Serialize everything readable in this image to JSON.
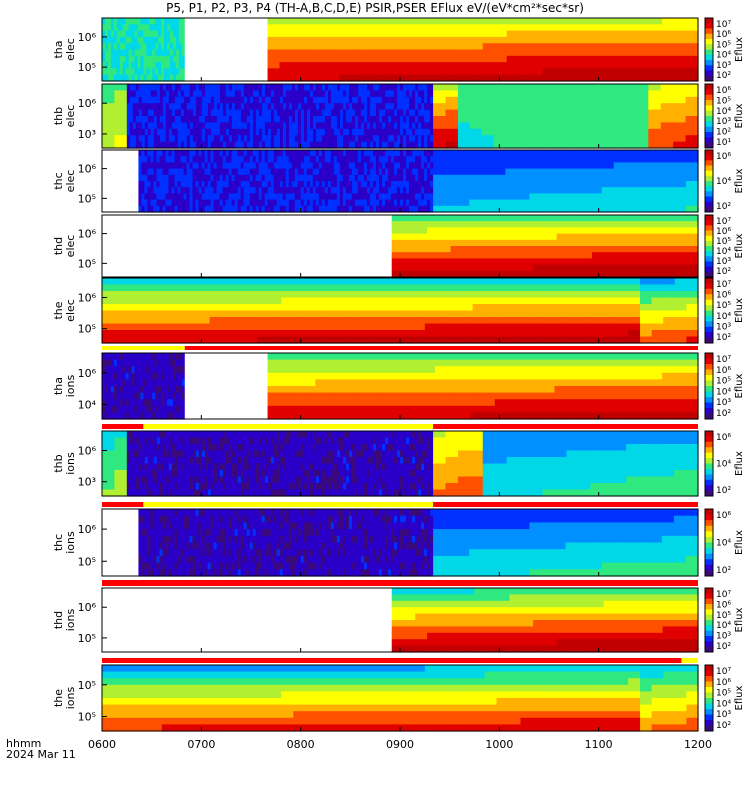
{
  "title": "P5, P1, P2, P3, P4 (TH-A,B,C,D,E) PSIR,PSER EFlux eV/(eV*cm²*sec*sr)",
  "time_label": "hhmm",
  "date_label": "2024 Mar 11",
  "colors": {
    "colormap": [
      "#3b0a7a",
      "#2a00c8",
      "#0030ff",
      "#0090ff",
      "#00d8e8",
      "#30e880",
      "#b0f030",
      "#ffff00",
      "#ffb000",
      "#ff5000",
      "#e00000",
      "#c00000"
    ],
    "flag_red": "#ff0000",
    "flag_yellow": "#ffff00",
    "gap": "#ffffff"
  },
  "chart_data": {
    "type": "heatmap",
    "x_ticks": [
      "0600",
      "0700",
      "0800",
      "0900",
      "1000",
      "1100",
      "1200"
    ],
    "xlim": [
      "06:00",
      "12:00"
    ],
    "colorbar_label": "Eflux",
    "panels": [
      {
        "ylabel": [
          "tha",
          "elec"
        ],
        "y_ticks": [
          "10⁶",
          "10⁵"
        ],
        "cbar_ticks": [
          "10⁷",
          "10⁶",
          "10⁵",
          "10⁴",
          "10³",
          "10²"
        ],
        "segments": [
          {
            "start": "06:00",
            "end": "06:50",
            "pattern": "noise",
            "level": 0.35
          },
          {
            "start": "06:50",
            "end": "07:40",
            "pattern": "gap"
          },
          {
            "start": "07:40",
            "end": "12:00",
            "pattern": "smooth",
            "top": 0.55,
            "bottom": 0.92
          }
        ]
      },
      {
        "ylabel": [
          "thb",
          "elec"
        ],
        "y_ticks": [
          "10⁶",
          "10³"
        ],
        "cbar_ticks": [
          "10⁶",
          "10⁵",
          "10⁴",
          "10³",
          "10²",
          "10¹"
        ],
        "segments": [
          {
            "start": "06:00",
            "end": "06:15",
            "pattern": "smooth",
            "top": 0.5,
            "bottom": 0.55
          },
          {
            "start": "06:15",
            "end": "09:20",
            "pattern": "noise",
            "level": 0.1
          },
          {
            "start": "09:20",
            "end": "09:35",
            "pattern": "smooth",
            "top": 0.55,
            "bottom": 0.9
          },
          {
            "start": "09:35",
            "end": "11:30",
            "pattern": "smooth",
            "top": 0.5,
            "bottom": 0.4
          },
          {
            "start": "11:30",
            "end": "12:00",
            "pattern": "smooth",
            "top": 0.6,
            "bottom": 0.8
          }
        ]
      },
      {
        "ylabel": [
          "thc",
          "elec"
        ],
        "y_ticks": [
          "10⁶",
          "10⁵"
        ],
        "cbar_ticks": [
          "10⁶",
          "10⁴",
          "10²"
        ],
        "segments": [
          {
            "start": "06:00",
            "end": "06:22",
            "pattern": "gap"
          },
          {
            "start": "06:22",
            "end": "09:20",
            "pattern": "noise",
            "level": 0.1
          },
          {
            "start": "09:20",
            "end": "12:00",
            "pattern": "smooth",
            "top": 0.2,
            "bottom": 0.35
          }
        ]
      },
      {
        "ylabel": [
          "thd",
          "elec"
        ],
        "y_ticks": [
          "10⁶",
          "10⁵"
        ],
        "cbar_ticks": [
          "10⁷",
          "10⁶",
          "10⁵",
          "10⁴",
          "10³",
          "10²"
        ],
        "segments": [
          {
            "start": "06:00",
            "end": "08:55",
            "pattern": "gap"
          },
          {
            "start": "08:55",
            "end": "12:00",
            "pattern": "smooth",
            "top": 0.45,
            "bottom": 0.95
          }
        ]
      },
      {
        "ylabel": [
          "the",
          "elec"
        ],
        "y_ticks": [
          "10⁶",
          "10⁵"
        ],
        "cbar_ticks": [
          "10⁷",
          "10⁶",
          "10⁵",
          "10⁴",
          "10³",
          "10²"
        ],
        "segments": [
          {
            "start": "06:00",
            "end": "11:25",
            "pattern": "smooth",
            "top": 0.35,
            "bottom": 0.92
          },
          {
            "start": "11:25",
            "end": "12:00",
            "pattern": "smooth",
            "top": 0.3,
            "bottom": 0.8
          }
        ]
      },
      {
        "ylabel": [
          "tha",
          "ions"
        ],
        "y_ticks": [
          "10⁶",
          "10⁴"
        ],
        "cbar_ticks": [
          "10⁷",
          "10⁶",
          "10⁵",
          "10⁴",
          "10³",
          "10²"
        ],
        "segments": [
          {
            "start": "06:00",
            "end": "06:50",
            "pattern": "noise",
            "level": 0.05
          },
          {
            "start": "06:50",
            "end": "07:40",
            "pattern": "gap"
          },
          {
            "start": "07:40",
            "end": "12:00",
            "pattern": "smooth",
            "top": 0.45,
            "bottom": 0.9
          }
        ]
      },
      {
        "ylabel": [
          "thb",
          "ions"
        ],
        "y_ticks": [
          "10⁶",
          "10³"
        ],
        "cbar_ticks": [
          "10⁶",
          "10⁴",
          "10²"
        ],
        "segments": [
          {
            "start": "06:00",
            "end": "06:15",
            "pattern": "smooth",
            "top": 0.4,
            "bottom": 0.5
          },
          {
            "start": "06:15",
            "end": "09:20",
            "pattern": "noise",
            "level": 0.05
          },
          {
            "start": "09:20",
            "end": "09:50",
            "pattern": "smooth",
            "top": 0.6,
            "bottom": 0.75
          },
          {
            "start": "09:50",
            "end": "12:00",
            "pattern": "smooth",
            "top": 0.3,
            "bottom": 0.4
          }
        ]
      },
      {
        "ylabel": [
          "thc",
          "ions"
        ],
        "y_ticks": [
          "10⁶",
          "10⁵"
        ],
        "cbar_ticks": [
          "10⁶",
          "10⁴",
          "10²"
        ],
        "segments": [
          {
            "start": "06:00",
            "end": "06:22",
            "pattern": "gap"
          },
          {
            "start": "06:22",
            "end": "09:20",
            "pattern": "noise",
            "level": 0.05
          },
          {
            "start": "09:20",
            "end": "12:00",
            "pattern": "smooth",
            "top": 0.2,
            "bottom": 0.4
          }
        ]
      },
      {
        "ylabel": [
          "thd",
          "ions"
        ],
        "y_ticks": [
          "10⁶",
          "10⁵"
        ],
        "cbar_ticks": [
          "10⁷",
          "10⁶",
          "10⁵",
          "10⁴",
          "10³",
          "10²"
        ],
        "segments": [
          {
            "start": "06:00",
            "end": "08:55",
            "pattern": "gap"
          },
          {
            "start": "08:55",
            "end": "12:00",
            "pattern": "smooth",
            "top": 0.4,
            "bottom": 0.95
          }
        ]
      },
      {
        "ylabel": [
          "the",
          "ions"
        ],
        "y_ticks": [
          "10⁵",
          "10⁵"
        ],
        "cbar_ticks": [
          "10⁷",
          "10⁶",
          "10⁵",
          "10⁴",
          "10³",
          "10²"
        ],
        "segments": [
          {
            "start": "06:00",
            "end": "11:25",
            "pattern": "smooth",
            "top": 0.3,
            "bottom": 0.85
          },
          {
            "start": "11:25",
            "end": "12:00",
            "pattern": "smooth",
            "top": 0.35,
            "bottom": 0.75
          }
        ]
      }
    ],
    "flag_bars": [
      {
        "after_panel": 4,
        "segments": [
          {
            "start": "06:00",
            "end": "06:50",
            "color": "yellow"
          },
          {
            "start": "06:50",
            "end": "12:00",
            "color": "red"
          }
        ]
      },
      {
        "after_panel": 5,
        "segments": [
          {
            "start": "06:00",
            "end": "06:25",
            "color": "red"
          },
          {
            "start": "06:25",
            "end": "09:20",
            "color": "yellow"
          },
          {
            "start": "09:20",
            "end": "12:00",
            "color": "red"
          }
        ]
      },
      {
        "after_panel": 6,
        "segments": [
          {
            "start": "06:00",
            "end": "06:25",
            "color": "red"
          },
          {
            "start": "06:25",
            "end": "09:20",
            "color": "yellow"
          },
          {
            "start": "09:20",
            "end": "12:00",
            "color": "red"
          }
        ]
      },
      {
        "after_panel": 7,
        "segments": [
          {
            "start": "06:00",
            "end": "12:00",
            "color": "red"
          }
        ]
      },
      {
        "after_panel": 8,
        "segments": [
          {
            "start": "06:00",
            "end": "11:50",
            "color": "red"
          },
          {
            "start": "11:50",
            "end": "12:00",
            "color": "yellow"
          }
        ]
      }
    ]
  }
}
